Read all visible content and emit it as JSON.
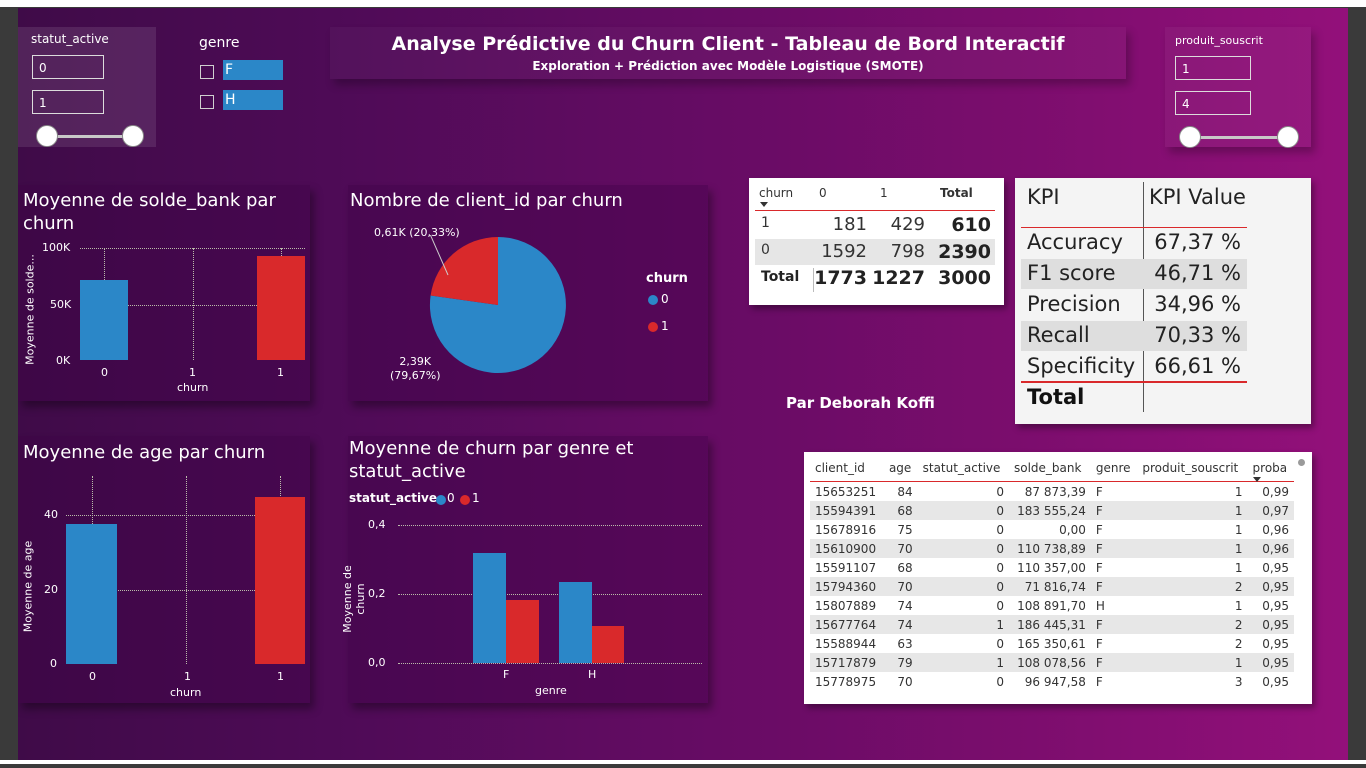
{
  "dashboard": {
    "title": "Analyse Prédictive du Churn Client - Tableau de Bord Interactif",
    "subtitle": "Exploration + Prédiction avec Modèle Logistique (SMOTE)",
    "author": "Par Deborah Koffi",
    "background_colors": [
      "#3f0b48",
      "#93107a"
    ],
    "accent_blue": "#2b87c8",
    "accent_red": "#d9292b"
  },
  "slicers": {
    "statut_active": {
      "label": "statut_active",
      "min": "0",
      "max": "1"
    },
    "genre": {
      "label": "genre",
      "options": [
        "F",
        "H"
      ]
    },
    "produit_souscrit": {
      "label": "produit_souscrit",
      "min": "1",
      "max": "4"
    }
  },
  "charts": {
    "solde": {
      "title": "Moyenne de solde_bank par churn",
      "ylabel": "Moyenne de solde...",
      "xlabel": "churn",
      "yticks": [
        "100K",
        "50K",
        "0K"
      ],
      "xticks": [
        "0",
        "1",
        "1"
      ]
    },
    "pie": {
      "title": "Nombre de client_id par churn",
      "legend_title": "churn",
      "legend_items": [
        "0",
        "1"
      ],
      "label_1": "0,61K (20,33%)",
      "label_0_line1": "2,39K",
      "label_0_line2": "(79,67%)"
    },
    "age": {
      "title": "Moyenne de age par churn",
      "ylabel": "Moyenne de age",
      "xlabel": "churn",
      "yticks": [
        "40",
        "20",
        "0"
      ],
      "xticks": [
        "0",
        "1",
        "1"
      ]
    },
    "genre": {
      "title": "Moyenne de churn par genre et statut_active",
      "legend_title": "statut_active",
      "legend_items": [
        "0",
        "1"
      ],
      "ylabel": "Moyenne de churn",
      "xlabel": "genre",
      "yticks": [
        "0,4",
        "0,2",
        "0,0"
      ],
      "xticks": [
        "F",
        "H"
      ]
    }
  },
  "chart_data": [
    {
      "type": "bar",
      "title": "Moyenne de solde_bank par churn",
      "xlabel": "churn",
      "ylabel": "Moyenne de solde...",
      "categories": [
        0,
        1
      ],
      "values": [
        72000,
        92000
      ],
      "ylim": [
        0,
        100000
      ],
      "colors": [
        "#2b87c8",
        "#d9292b"
      ]
    },
    {
      "type": "pie",
      "title": "Nombre de client_id par churn",
      "labels": [
        "0",
        "1"
      ],
      "values": [
        2390,
        610
      ],
      "percent": [
        79.67,
        20.33
      ],
      "colors": [
        "#2b87c8",
        "#d9292b"
      ]
    },
    {
      "type": "bar",
      "title": "Moyenne de age par churn",
      "xlabel": "churn",
      "ylabel": "Moyenne de age",
      "categories": [
        0,
        1
      ],
      "values": [
        37.5,
        44.8
      ],
      "ylim": [
        0,
        48
      ],
      "colors": [
        "#2b87c8",
        "#d9292b"
      ]
    },
    {
      "type": "bar",
      "title": "Moyenne de churn par genre et statut_active",
      "xlabel": "genre",
      "ylabel": "Moyenne de churn",
      "categories": [
        "F",
        "H"
      ],
      "ylim": [
        0,
        0.4
      ],
      "series": [
        {
          "name": "0",
          "values": [
            0.32,
            0.235
          ]
        },
        {
          "name": "1",
          "values": [
            0.185,
            0.108
          ]
        }
      ],
      "colors": [
        "#2b87c8",
        "#d9292b"
      ]
    }
  ],
  "confusion": {
    "headers": [
      "churn",
      "0",
      "1",
      "Total"
    ],
    "rows": [
      {
        "label": "1",
        "c0": "181",
        "c1": "429",
        "total": "610"
      },
      {
        "label": "0",
        "c0": "1592",
        "c1": "798",
        "total": "2390"
      }
    ],
    "total_row": {
      "label": "Total",
      "c0": "1773",
      "c1": "1227",
      "total": "3000"
    }
  },
  "kpi": {
    "headers": [
      "KPI",
      "KPI Value"
    ],
    "rows": [
      {
        "name": "Accuracy",
        "value": "67,37 %"
      },
      {
        "name": "F1 score",
        "value": "46,71 %"
      },
      {
        "name": "Precision",
        "value": "34,96 %"
      },
      {
        "name": "Recall",
        "value": "70,33 %"
      },
      {
        "name": "Specificity",
        "value": "66,61 %"
      }
    ],
    "total_label": "Total"
  },
  "clients": {
    "headers": [
      "client_id",
      "age",
      "statut_active",
      "solde_bank",
      "genre",
      "produit_souscrit",
      "proba"
    ],
    "rows": [
      [
        "15653251",
        "84",
        "0",
        "87 873,39",
        "F",
        "1",
        "0,99"
      ],
      [
        "15594391",
        "68",
        "0",
        "183 555,24",
        "F",
        "1",
        "0,97"
      ],
      [
        "15678916",
        "75",
        "0",
        "0,00",
        "F",
        "1",
        "0,96"
      ],
      [
        "15610900",
        "70",
        "0",
        "110 738,89",
        "F",
        "1",
        "0,96"
      ],
      [
        "15591107",
        "68",
        "0",
        "110 357,00",
        "F",
        "1",
        "0,95"
      ],
      [
        "15794360",
        "70",
        "0",
        "71 816,74",
        "F",
        "2",
        "0,95"
      ],
      [
        "15807889",
        "74",
        "0",
        "108 891,70",
        "H",
        "1",
        "0,95"
      ],
      [
        "15677764",
        "74",
        "1",
        "186 445,31",
        "F",
        "2",
        "0,95"
      ],
      [
        "15588944",
        "63",
        "0",
        "165 350,61",
        "F",
        "2",
        "0,95"
      ],
      [
        "15717879",
        "79",
        "1",
        "108 078,56",
        "F",
        "1",
        "0,95"
      ],
      [
        "15778975",
        "70",
        "0",
        "96 947,58",
        "F",
        "3",
        "0,95"
      ]
    ]
  }
}
